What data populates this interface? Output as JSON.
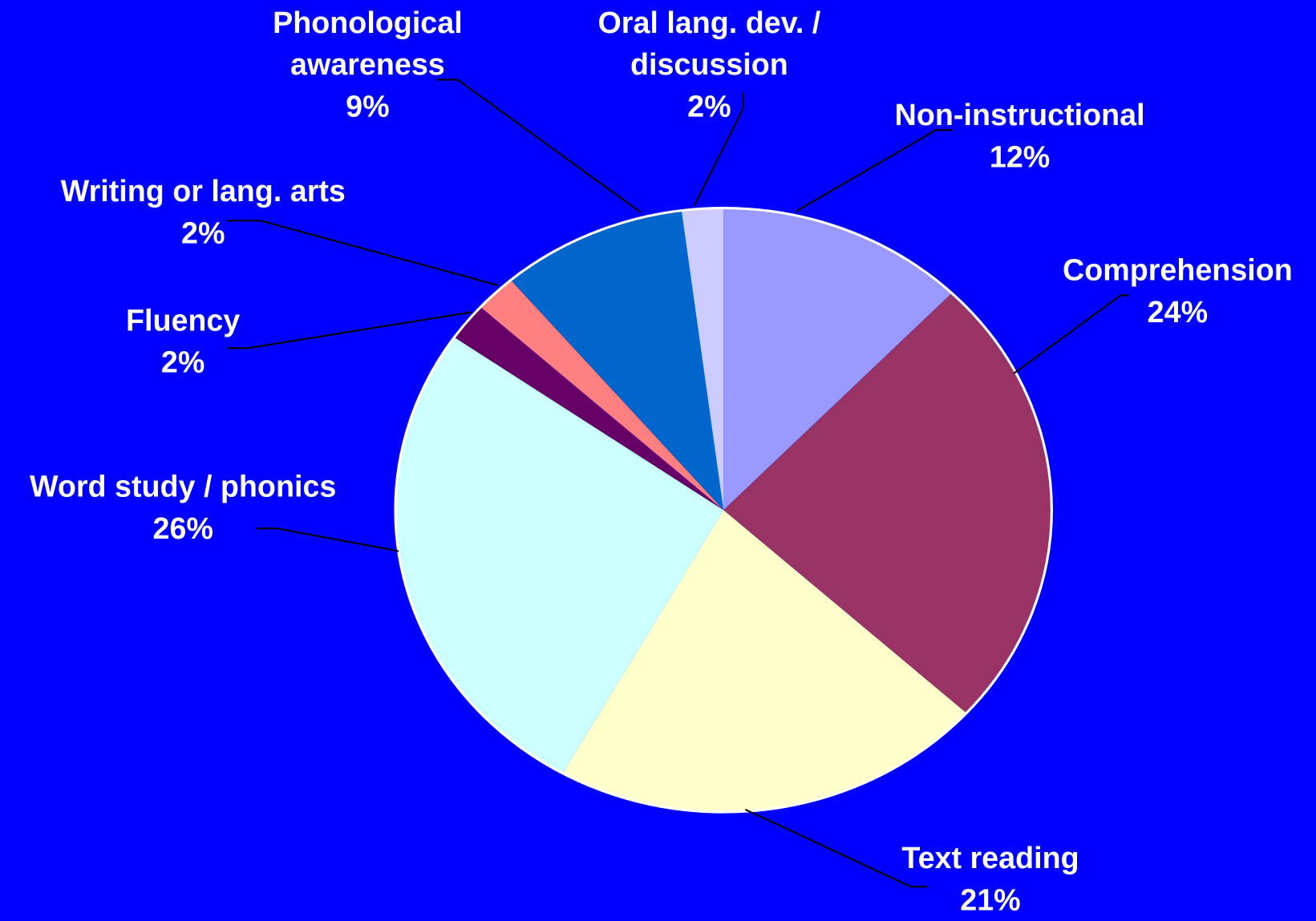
{
  "chart_data": {
    "type": "pie",
    "categories": [
      "Non-instructional",
      "Comprehension",
      "Text reading",
      "Word study / phonics",
      "Fluency",
      "Writing or lang. arts",
      "Phonological awareness",
      "Oral lang. dev. / discussion"
    ],
    "values": [
      12,
      24,
      21,
      26,
      2,
      2,
      9,
      2
    ],
    "value_labels": [
      "12%",
      "24%",
      "21%",
      "26%",
      "2%",
      "2%",
      "9%",
      "2%"
    ],
    "colors": [
      "#9999ff",
      "#993366",
      "#ffffcc",
      "#ccffff",
      "#660066",
      "#ff8080",
      "#0066cc",
      "#ccccff"
    ]
  }
}
